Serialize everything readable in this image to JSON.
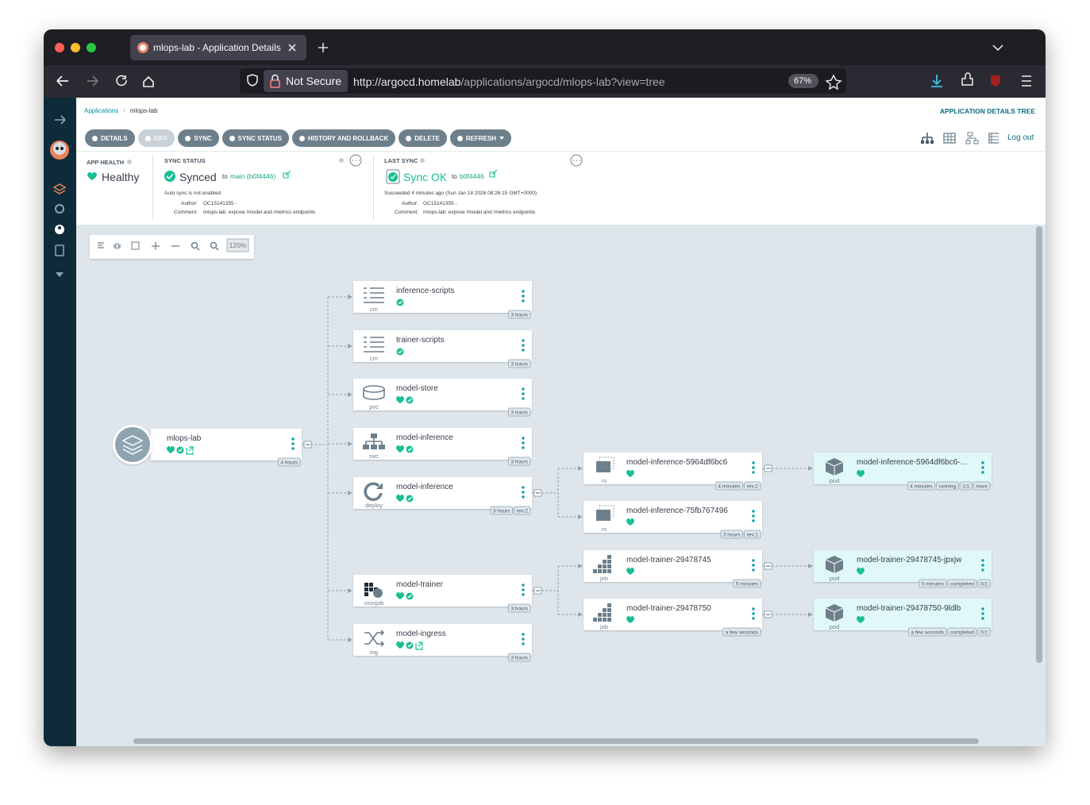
{
  "browser": {
    "tab_title": "mlops-lab - Application Details",
    "security": "Not Secure",
    "url_host": "http://argocd.homelab",
    "url_path": "/applications/argocd/mlops-lab?view=tree",
    "zoom": "67%"
  },
  "breadcrumb": {
    "root": "Applications",
    "separator": "/",
    "current": "mlops-lab"
  },
  "page_title": "APPLICATION DETAILS TREE",
  "toolbar": [
    "DETAILS",
    "DIFF",
    "SYNC",
    "SYNC STATUS",
    "HISTORY AND ROLLBACK",
    "DELETE",
    "REFRESH"
  ],
  "logout": "Log out",
  "app_health": {
    "label": "APP HEALTH",
    "value": "Healthy"
  },
  "sync_status": {
    "label": "SYNC STATUS",
    "value": "Synced",
    "to": "to",
    "revision": "main (b0f4446)",
    "note": "Auto sync is not enabled.",
    "author_label": "Author:",
    "author": "OC15141355 -",
    "comment_label": "Comment:",
    "comment": "mlops-lab: expose /model and /metrics endpoints"
  },
  "last_sync": {
    "label": "LAST SYNC",
    "value": "Sync OK",
    "to": "to",
    "revision": "b0f4446",
    "note": "Succeeded 4 minutes ago (Sun Jan 18 2026 08:26:15 GMT+0000)",
    "author_label": "Author:",
    "author": "OC15141355 -",
    "comment_label": "Comment:",
    "comment": "mlops-lab: expose /model and /metrics endpoints"
  },
  "graph_zoom": "120%",
  "nodes": [
    {
      "name": "mlops-lab",
      "tags": [
        "4 hours"
      ]
    },
    {
      "name": "inference-scripts",
      "kind": "cm",
      "tags": [
        "3 hours"
      ]
    },
    {
      "name": "trainer-scripts",
      "kind": "cm",
      "tags": [
        "3 hours"
      ]
    },
    {
      "name": "model-store",
      "kind": "pvc",
      "tags": [
        "3 hours"
      ]
    },
    {
      "name": "model-inference",
      "kind": "svc",
      "tags": [
        "3 hours"
      ]
    },
    {
      "name": "model-inference",
      "kind": "deploy",
      "tags": [
        "3 hours",
        "rev:2"
      ]
    },
    {
      "name": "model-trainer",
      "kind": "cronjob",
      "tags": [
        "3 hours"
      ]
    },
    {
      "name": "model-ingress",
      "kind": "ing",
      "tags": [
        "3 hours"
      ]
    },
    {
      "name": "model-inference-5964df6bc6",
      "kind": "rs",
      "tags": [
        "4 minutes",
        "rev:2"
      ]
    },
    {
      "name": "model-inference-75fb767496",
      "kind": "rs",
      "tags": [
        "3 hours",
        "rev:1"
      ]
    },
    {
      "name": "model-trainer-29478745",
      "kind": "job",
      "tags": [
        "5 minutes"
      ]
    },
    {
      "name": "model-trainer-29478750",
      "kind": "job",
      "tags": [
        "a few seconds"
      ]
    },
    {
      "name": "model-inference-5964df6bc6-...",
      "kind": "pod",
      "tags": [
        "4 minutes",
        "running",
        "1/1",
        "more"
      ]
    },
    {
      "name": "model-trainer-29478745-jpxjw",
      "kind": "pod",
      "tags": [
        "5 minutes",
        "completed",
        "0/1"
      ]
    },
    {
      "name": "model-trainer-29478750-9ldlb",
      "kind": "pod",
      "tags": [
        "a few seconds",
        "completed",
        "0/1"
      ]
    }
  ]
}
